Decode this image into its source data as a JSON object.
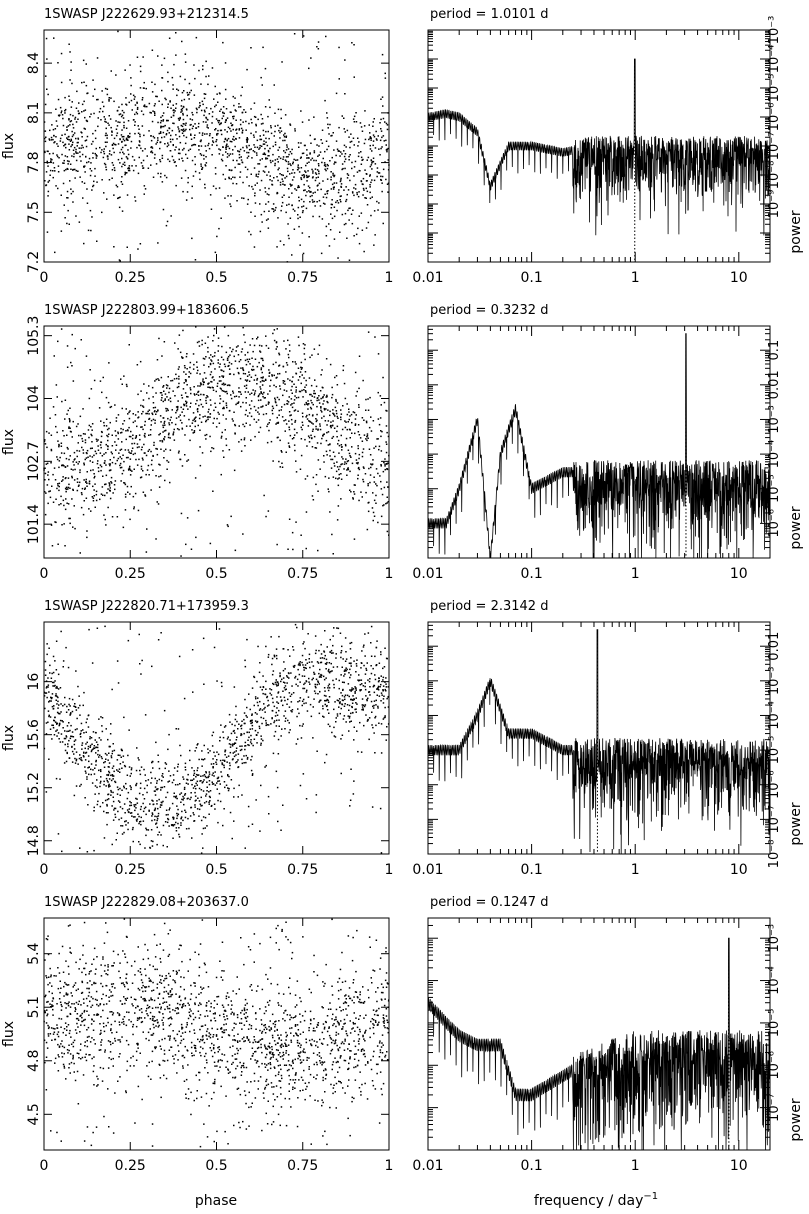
{
  "figure": {
    "x_label_left": "phase",
    "x_label_right": "frequency / day",
    "x_label_right_sup": "−1",
    "flux_label": "flux",
    "power_label": "power",
    "period_prefix": "period ="
  },
  "chart_data": [
    {
      "type": "scatter",
      "title": "1SWASP J222629.93+212314.5",
      "xlabel": "phase",
      "ylabel": "flux",
      "xlim": [
        0,
        1
      ],
      "ylim": [
        7.2,
        8.6
      ],
      "xticks": [
        0,
        0.25,
        0.5,
        0.75,
        1
      ],
      "xtick_labels": [
        "0",
        "0.25",
        "0.5",
        "0.75",
        "1"
      ],
      "yticks": [
        7.2,
        7.5,
        7.8,
        8.1,
        8.4
      ],
      "ytick_labels": [
        "7.2",
        "7.5",
        "7.8",
        "8.1",
        "8.4"
      ],
      "trend": {
        "phase": [
          0,
          0.15,
          0.3,
          0.4,
          0.5,
          0.6,
          0.72,
          0.85,
          1
        ],
        "flux": [
          7.88,
          7.93,
          8.01,
          8.0,
          7.97,
          7.85,
          7.7,
          7.72,
          7.88
        ]
      },
      "scatter_sigma": 0.17,
      "n_points": 1800
    },
    {
      "type": "line",
      "title": "period =  1.0101 d",
      "period_value": "1.0101 d",
      "xlabel": "frequency / day^-1",
      "ylabel": "power",
      "x_scale": "log",
      "y_scale": "log",
      "xlim": [
        0.01,
        20
      ],
      "ylim": [
        1e-10,
        0.01
      ],
      "xtick_labels": [
        "0.01",
        "0.1",
        "1",
        "10"
      ],
      "ytick_labels": [
        "10⁻⁹",
        "10⁻⁸",
        "10⁻⁷",
        "10⁻⁶",
        "10⁻⁵",
        "10⁻⁴",
        "10⁻³"
      ],
      "peak_frequency": 0.99,
      "envelope": {
        "frequency": [
          0.01,
          0.015,
          0.02,
          0.03,
          0.04,
          0.06,
          0.1,
          0.2,
          0.4,
          1,
          3,
          10,
          20
        ],
        "power": [
          1e-05,
          1.3e-05,
          1e-05,
          3e-06,
          4e-08,
          1e-06,
          1e-06,
          6e-07,
          1e-06,
          1e-06,
          1e-06,
          1e-06,
          1e-06
        ]
      },
      "peak_power": 0.001
    },
    {
      "type": "scatter",
      "title": "1SWASP J222803.99+183606.5",
      "xlabel": "phase",
      "ylabel": "flux",
      "xlim": [
        0,
        1
      ],
      "ylim": [
        100.7,
        105.5
      ],
      "xticks": [
        0,
        0.25,
        0.5,
        0.75,
        1
      ],
      "xtick_labels": [
        "0",
        "0.25",
        "0.5",
        "0.75",
        "1"
      ],
      "yticks": [
        101.4,
        102.7,
        104,
        105.3
      ],
      "ytick_labels": [
        "101.4",
        "102.7",
        "104",
        "105.3"
      ],
      "trend": {
        "phase": [
          0,
          0.1,
          0.2,
          0.3,
          0.4,
          0.5,
          0.6,
          0.7,
          0.8,
          0.9,
          1
        ],
        "flux": [
          102.6,
          102.55,
          102.7,
          103.3,
          103.9,
          104.3,
          104.4,
          104.1,
          103.6,
          103.0,
          102.6
        ]
      },
      "scatter_sigma": 0.65,
      "n_points": 1800
    },
    {
      "type": "line",
      "title": "period =  0.3232 d",
      "period_value": "0.3232 d",
      "xlabel": "frequency / day^-1",
      "ylabel": "power",
      "x_scale": "log",
      "y_scale": "log",
      "xlim": [
        0.01,
        20
      ],
      "ylim": [
        1e-07,
        0.5
      ],
      "xtick_labels": [
        "0.01",
        "0.1",
        "1",
        "10"
      ],
      "ytick_labels": [
        "10⁻⁶",
        "10⁻⁵",
        "10⁻⁴",
        "10⁻³",
        "0.01",
        "0.1"
      ],
      "peak_frequency": 3.09,
      "envelope": {
        "frequency": [
          0.01,
          0.015,
          0.02,
          0.03,
          0.04,
          0.05,
          0.07,
          0.1,
          0.2,
          0.4,
          1,
          3,
          10,
          20
        ],
        "power": [
          1e-06,
          1e-06,
          1e-05,
          0.001,
          1e-07,
          0.0001,
          0.002,
          1e-05,
          3e-05,
          3e-05,
          3e-05,
          3e-05,
          3e-05,
          3e-05
        ]
      },
      "peak_power": 0.3
    },
    {
      "type": "scatter",
      "title": "1SWASP J222820.71+173959.3",
      "xlabel": "phase",
      "ylabel": "flux",
      "xlim": [
        0,
        1
      ],
      "ylim": [
        14.7,
        16.45
      ],
      "xticks": [
        0,
        0.25,
        0.5,
        0.75,
        1
      ],
      "xtick_labels": [
        "0",
        "0.25",
        "0.5",
        "0.75",
        "1"
      ],
      "yticks": [
        14.8,
        15.2,
        15.6,
        16
      ],
      "ytick_labels": [
        "14.8",
        "15.2",
        "15.6",
        "16"
      ],
      "trend": {
        "phase": [
          0,
          0.1,
          0.2,
          0.25,
          0.3,
          0.4,
          0.5,
          0.6,
          0.7,
          0.8,
          0.9,
          1
        ],
        "flux": [
          15.9,
          15.55,
          15.25,
          15.1,
          15.05,
          15.1,
          15.3,
          15.65,
          15.95,
          16.0,
          15.95,
          15.9
        ]
      },
      "scatter_sigma": 0.17,
      "n_points": 1700
    },
    {
      "type": "line",
      "title": "period =  2.3142 d",
      "period_value": "2.3142 d",
      "xlabel": "frequency / day^-1",
      "ylabel": "power",
      "x_scale": "log",
      "y_scale": "log",
      "xlim": [
        0.01,
        20
      ],
      "ylim": [
        1e-08,
        0.05
      ],
      "xtick_labels": [
        "0.01",
        "0.1",
        "1",
        "10"
      ],
      "ytick_labels": [
        "10⁻⁸",
        "10⁻⁷",
        "10⁻⁶",
        "10⁻⁵",
        "10⁻⁴",
        "10⁻³",
        "0.01"
      ],
      "peak_frequency": 0.432,
      "envelope": {
        "frequency": [
          0.01,
          0.02,
          0.03,
          0.04,
          0.06,
          0.1,
          0.2,
          0.4,
          1,
          3,
          10,
          20
        ],
        "power": [
          1e-05,
          1e-05,
          0.0001,
          0.001,
          3e-05,
          3e-05,
          1e-05,
          1e-05,
          1e-05,
          1e-05,
          1e-05,
          1e-05
        ]
      },
      "peak_power": 0.03
    },
    {
      "type": "scatter",
      "title": "1SWASP J222829.08+203637.0",
      "xlabel": "phase",
      "ylabel": "flux",
      "xlim": [
        0,
        1
      ],
      "ylim": [
        4.3,
        5.6
      ],
      "xticks": [
        0,
        0.25,
        0.5,
        0.75,
        1
      ],
      "xtick_labels": [
        "0",
        "0.25",
        "0.5",
        "0.75",
        "1"
      ],
      "yticks": [
        4.5,
        4.8,
        5.1,
        5.4
      ],
      "ytick_labels": [
        "4.5",
        "4.8",
        "5.1",
        "5.4"
      ],
      "trend": {
        "phase": [
          0,
          0.2,
          0.35,
          0.5,
          0.65,
          0.75,
          0.85,
          1
        ],
        "flux": [
          5.05,
          5.1,
          5.05,
          4.95,
          4.88,
          4.85,
          4.9,
          5.05
        ]
      },
      "scatter_sigma": 0.18,
      "n_points": 1800
    },
    {
      "type": "line",
      "title": "period =  0.1247 d",
      "period_value": "0.1247 d",
      "xlabel": "frequency / day^-1",
      "ylabel": "power",
      "x_scale": "log",
      "y_scale": "log",
      "xlim": [
        0.01,
        20
      ],
      "ylim": [
        1e-08,
        0.003
      ],
      "xtick_labels": [
        "0.01",
        "0.1",
        "1",
        "10"
      ],
      "ytick_labels": [
        "10⁻⁷",
        "10⁻⁶",
        "10⁻⁵",
        "10⁻⁴",
        "10⁻³"
      ],
      "peak_frequency": 8.02,
      "envelope": {
        "frequency": [
          0.01,
          0.015,
          0.02,
          0.03,
          0.05,
          0.07,
          0.1,
          0.3,
          1,
          3,
          10,
          20
        ],
        "power": [
          3e-05,
          1e-05,
          5e-06,
          3e-06,
          3e-06,
          2e-07,
          2e-07,
          1e-06,
          3e-06,
          3e-06,
          3e-06,
          3e-06
        ]
      },
      "peak_power": 0.001
    }
  ]
}
